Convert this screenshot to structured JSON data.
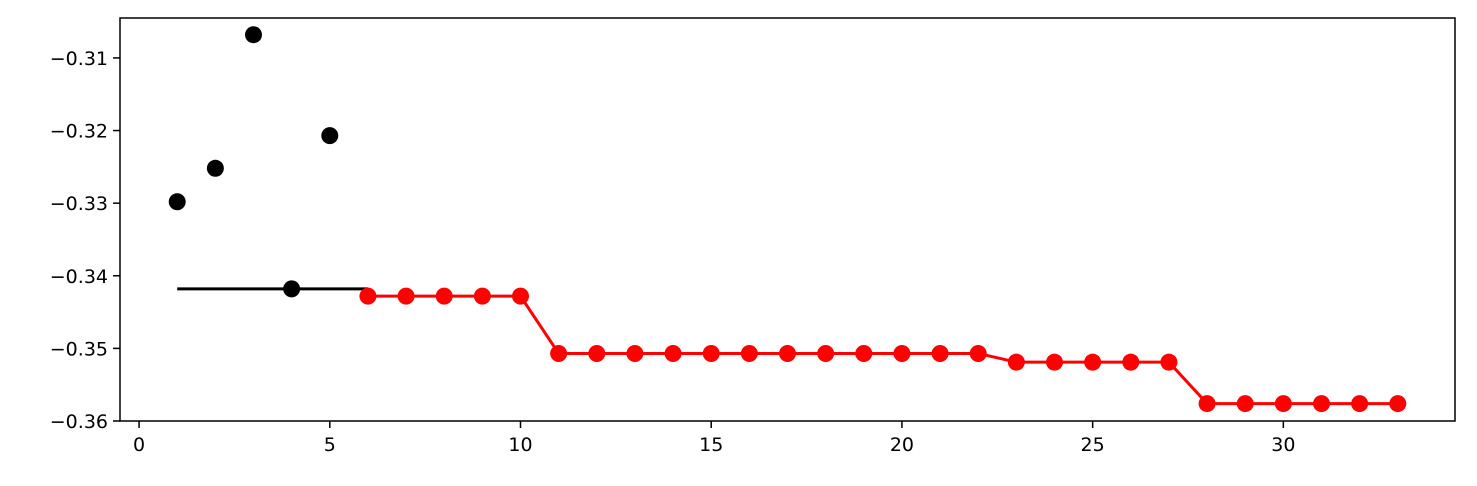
{
  "chart_data": {
    "type": "scatter",
    "xlim": [
      -0.5,
      34.5
    ],
    "ylim": [
      -0.36,
      -0.3045
    ],
    "x_ticks": [
      0,
      5,
      10,
      15,
      20,
      25,
      30
    ],
    "y_ticks": [
      -0.36,
      -0.35,
      -0.34,
      -0.33,
      -0.32,
      -0.31
    ],
    "grid": false,
    "colors": {
      "initial": "#000000",
      "optimized": "#ff0000"
    },
    "reference_line": {
      "x": [
        1,
        6
      ],
      "y": -0.3418
    },
    "series": [
      {
        "style": "markers",
        "color": "#000000",
        "x": [
          1,
          2,
          3,
          4,
          5
        ],
        "y": [
          -0.3298,
          -0.3252,
          -0.3068,
          -0.3418,
          -0.3207
        ]
      },
      {
        "style": "step-line-markers",
        "color": "#ff0000",
        "x": [
          6,
          7,
          8,
          9,
          10,
          11,
          12,
          13,
          14,
          15,
          16,
          17,
          18,
          19,
          20,
          21,
          22,
          23,
          24,
          25,
          26,
          27,
          28,
          29,
          30,
          31,
          32,
          33
        ],
        "y": [
          -0.3428,
          -0.3428,
          -0.3428,
          -0.3428,
          -0.3428,
          -0.3507,
          -0.3507,
          -0.3507,
          -0.3507,
          -0.3507,
          -0.3507,
          -0.3507,
          -0.3507,
          -0.3507,
          -0.3507,
          -0.3507,
          -0.3507,
          -0.3519,
          -0.3519,
          -0.3519,
          -0.3519,
          -0.3519,
          -0.3576,
          -0.3576,
          -0.3576,
          -0.3576,
          -0.3576,
          -0.3576
        ]
      }
    ]
  }
}
